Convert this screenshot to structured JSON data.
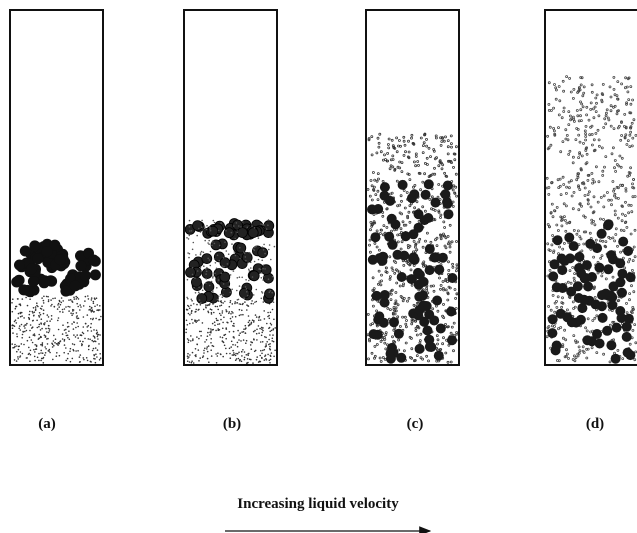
{
  "panels": [
    {
      "label": "(a)"
    },
    {
      "label": "(b)"
    },
    {
      "label": "(c)"
    },
    {
      "label": "(d)"
    }
  ],
  "caption": "Increasing liquid velocity"
}
